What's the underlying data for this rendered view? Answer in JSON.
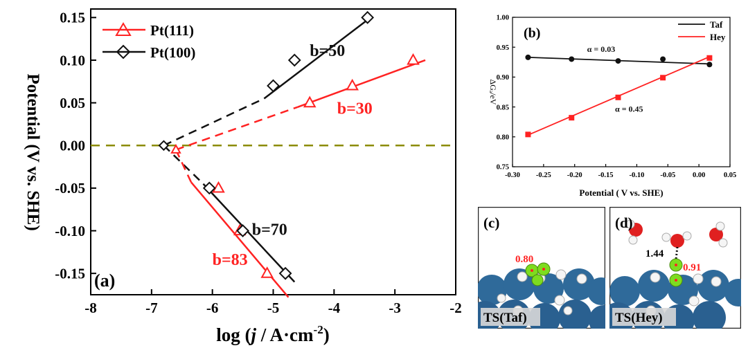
{
  "chart_data": [
    {
      "panel": "(a)",
      "type": "line",
      "xlabel_prefix": "log (",
      "xlabel_j": "j",
      "xlabel_suffix": " / A·cm",
      "xlabel_exp": "-2",
      "xlabel_close": ")",
      "ylabel": "Potential (V vs. SHE)",
      "xlim": [
        -8,
        -2
      ],
      "ylim": [
        -0.175,
        0.16
      ],
      "xticks": [
        -8,
        -7,
        -6,
        -5,
        -4,
        -3,
        -2
      ],
      "xtick_labels": [
        "-8",
        "-7",
        "-6",
        "-5",
        "-4",
        "-3",
        "-2"
      ],
      "yticks": [
        -0.15,
        -0.1,
        -0.05,
        0.0,
        0.05,
        0.1,
        0.15
      ],
      "ytick_labels": [
        "-0.15",
        "-0.10",
        "-0.05",
        "0.00",
        "0.05",
        "0.10",
        "0.15"
      ],
      "legend_position": "top-left",
      "series": [
        {
          "name": "Pt(111)",
          "color": "#ff2222",
          "marker": "triangle",
          "x": [
            -2.7,
            -3.7,
            -4.4,
            -5.9,
            -5.55,
            -5.1
          ],
          "y": [
            0.1,
            0.07,
            0.05,
            -0.05,
            -0.1,
            -0.15
          ]
        },
        {
          "name": "Pt(100)",
          "color": "#111111",
          "marker": "diamond",
          "x": [
            -3.45,
            -4.65,
            -5.0,
            -6.05,
            -5.5,
            -4.8
          ],
          "y": [
            0.15,
            0.1,
            0.07,
            -0.05,
            -0.1,
            -0.15
          ]
        }
      ],
      "fit_lines": [
        {
          "color": "#ff2222",
          "x": [
            -4.6,
            -2.5
          ],
          "y": [
            0.045,
            0.1
          ]
        },
        {
          "color": "#111111",
          "x": [
            -5.15,
            -3.4
          ],
          "y": [
            0.055,
            0.15
          ]
        },
        {
          "color": "#ff2222",
          "x": [
            -6.35,
            -4.75
          ],
          "y": [
            -0.043,
            -0.178
          ]
        },
        {
          "color": "#111111",
          "x": [
            -6.15,
            -4.65
          ],
          "y": [
            -0.045,
            -0.16
          ]
        }
      ],
      "dashed_lines": [
        {
          "color": "#ff2222",
          "x": [
            -6.6,
            -4.6
          ],
          "y": [
            -0.005,
            0.045
          ]
        },
        {
          "color": "#111111",
          "x": [
            -6.8,
            -5.15
          ],
          "y": [
            0.0,
            0.055
          ]
        },
        {
          "color": "#111111",
          "x": [
            -6.8,
            -6.15
          ],
          "y": [
            0.0,
            -0.045
          ]
        },
        {
          "color": "#ff2222",
          "x": [
            -6.6,
            -6.35
          ],
          "y": [
            -0.005,
            -0.043
          ]
        }
      ],
      "reference_line": {
        "y": 0.0,
        "color": "#8b8b00"
      },
      "annotations": [
        {
          "text": "b=50",
          "color": "#111111",
          "x": -4.4,
          "y": 0.105
        },
        {
          "text": "b=30",
          "color": "#ff2222",
          "x": -3.95,
          "y": 0.037
        },
        {
          "text": "b=70",
          "color": "#111111",
          "x": -5.35,
          "y": -0.105
        },
        {
          "text": "b=83",
          "color": "#ff2222",
          "x": -6.0,
          "y": -0.14
        }
      ],
      "cusp_markers": [
        {
          "x": -6.8,
          "y": 0.0,
          "marker": "diamond",
          "color": "#111111"
        },
        {
          "x": -6.6,
          "y": -0.005,
          "marker": "triangle",
          "color": "#ff2222"
        }
      ]
    },
    {
      "panel": "(b)",
      "type": "line",
      "xlabel": "Potential ( V vs. SHE)",
      "ylabel": "ΔGₐ/eV",
      "xlim": [
        -0.3,
        0.05
      ],
      "ylim": [
        0.75,
        1.0
      ],
      "xticks": [
        -0.3,
        -0.25,
        -0.2,
        -0.15,
        -0.1,
        -0.05,
        0.0,
        0.05
      ],
      "xtick_labels": [
        "-0.30",
        "-0.25",
        "-0.20",
        "-0.15",
        "-0.10",
        "-0.05",
        "0.00",
        "0.05"
      ],
      "yticks": [
        0.75,
        0.8,
        0.85,
        0.9,
        0.95,
        1.0
      ],
      "ytick_labels": [
        "0.75",
        "0.80",
        "0.85",
        "0.90",
        "0.95",
        "1.00"
      ],
      "legend_position": "top-right",
      "series": [
        {
          "name": "Taf",
          "color": "#111111",
          "marker": "circle",
          "x": [
            -0.275,
            -0.205,
            -0.13,
            -0.058,
            0.017
          ],
          "y": [
            0.933,
            0.93,
            0.927,
            0.93,
            0.921
          ]
        },
        {
          "name": "Hey",
          "color": "#ff2222",
          "marker": "square",
          "x": [
            -0.275,
            -0.205,
            -0.13,
            -0.058,
            0.017
          ],
          "y": [
            0.804,
            0.832,
            0.866,
            0.899,
            0.932
          ]
        }
      ],
      "fit_lines": [
        {
          "color": "#111111",
          "x": [
            -0.275,
            0.017
          ],
          "y": [
            0.933,
            0.922
          ]
        },
        {
          "color": "#ff2222",
          "x": [
            -0.275,
            0.017
          ],
          "y": [
            0.803,
            0.934
          ]
        }
      ],
      "annotations": [
        {
          "text": "α = 0.03",
          "color": "#111111",
          "x": -0.18,
          "y": 0.942
        },
        {
          "text": "α = 0.45",
          "color": "#111111",
          "x": -0.135,
          "y": 0.842
        }
      ]
    }
  ],
  "images": {
    "c": {
      "panel_label": "(c)",
      "distance_label": "0.80",
      "ts_label": "TS(Taf)"
    },
    "d": {
      "panel_label": "(d)",
      "distance_label_1": "1.44",
      "distance_label_2": "0.91",
      "ts_label": "TS(Hey)"
    }
  },
  "colors": {
    "red": "#ff2222",
    "black": "#111111",
    "olive": "#8b8b00",
    "pt_blue": "#2f6a9a",
    "h_green": "#7ddc1f"
  }
}
